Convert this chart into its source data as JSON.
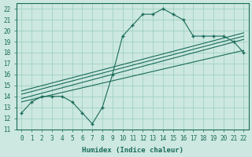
{
  "xlabel": "Humidex (Indice chaleur)",
  "ylabel": "",
  "xlim": [
    -0.5,
    22.5
  ],
  "ylim": [
    11,
    22.5
  ],
  "yticks": [
    11,
    12,
    13,
    14,
    15,
    16,
    17,
    18,
    19,
    20,
    21,
    22
  ],
  "xticks": [
    0,
    1,
    2,
    3,
    4,
    5,
    6,
    7,
    8,
    9,
    10,
    11,
    12,
    13,
    14,
    15,
    16,
    17,
    18,
    19,
    20,
    21,
    22
  ],
  "bg_color": "#cce8e0",
  "grid_color": "#99ccbb",
  "line_color": "#1a6b5a",
  "main_x": [
    0,
    1,
    2,
    3,
    4,
    5,
    6,
    7,
    8,
    9,
    10,
    11,
    12,
    13,
    14,
    15,
    16,
    17,
    18,
    19,
    20,
    21,
    22
  ],
  "main_y": [
    12.5,
    13.5,
    14.0,
    14.0,
    14.0,
    13.5,
    12.5,
    11.5,
    13.0,
    16.0,
    19.5,
    20.5,
    21.5,
    21.5,
    22.0,
    21.5,
    21.0,
    19.5,
    19.5,
    19.5,
    19.5,
    19.0,
    18.0
  ],
  "line1_x": [
    0,
    22
  ],
  "line1_y": [
    13.5,
    18.2
  ],
  "line2_x": [
    0,
    22
  ],
  "line2_y": [
    13.8,
    19.2
  ],
  "line3_x": [
    0,
    22
  ],
  "line3_y": [
    14.2,
    19.5
  ],
  "line4_x": [
    0,
    22
  ],
  "line4_y": [
    14.5,
    19.8
  ],
  "extra_line_x": [
    8.5,
    9.5
  ],
  "extra_line_y": [
    13.5,
    16.5
  ]
}
